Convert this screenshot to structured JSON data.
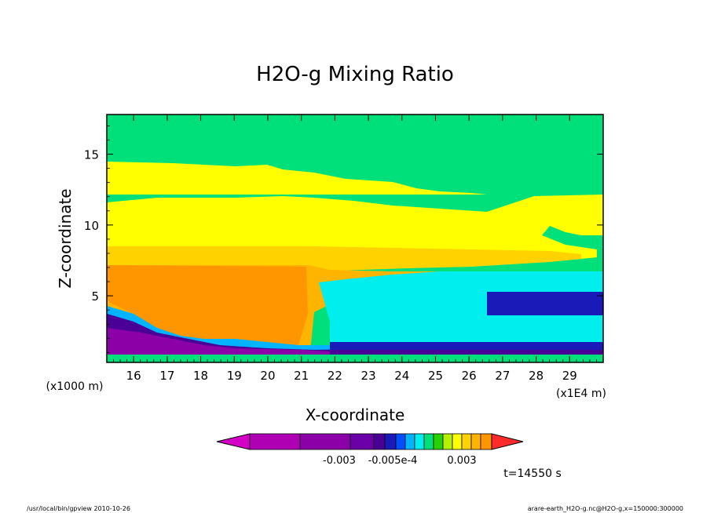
{
  "chart_data": {
    "type": "heatmap",
    "title": "H2O-g Mixing Ratio",
    "xlabel": "X-coordinate",
    "ylabel": "Z-coordinate",
    "x_unit_left": "(x1000 m)",
    "x_unit_right": "(x1E4 m)",
    "xlim": [
      15.2,
      30.0
    ],
    "ylim": [
      0.3,
      17.8
    ],
    "x_ticks": [
      "16",
      "17",
      "18",
      "19",
      "20",
      "21",
      "22",
      "23",
      "24",
      "25",
      "26",
      "27",
      "28",
      "29"
    ],
    "y_ticks": [
      "5",
      "10",
      "15"
    ],
    "colorbar": {
      "colors": [
        "#d400c8",
        "#b000b4",
        "#8c00a8",
        "#6c00a8",
        "#4a0096",
        "#1a1ab8",
        "#0050ff",
        "#00b4ff",
        "#00eeee",
        "#00e07a",
        "#28d200",
        "#b4f000",
        "#ffff00",
        "#ffd200",
        "#ffb400",
        "#ff9600",
        "#ff2a2a"
      ],
      "labels": [
        "-0.003",
        "-0.005e-4",
        "0.003"
      ]
    },
    "time_label": "t=14550 s",
    "grid": false,
    "legend": "colorbar-bottom"
  },
  "footer": {
    "left": "/usr/local/bin/gpview  2010-10-26",
    "right": "arare-earth_H2O-g.nc@H2O-g,x=150000:300000"
  }
}
